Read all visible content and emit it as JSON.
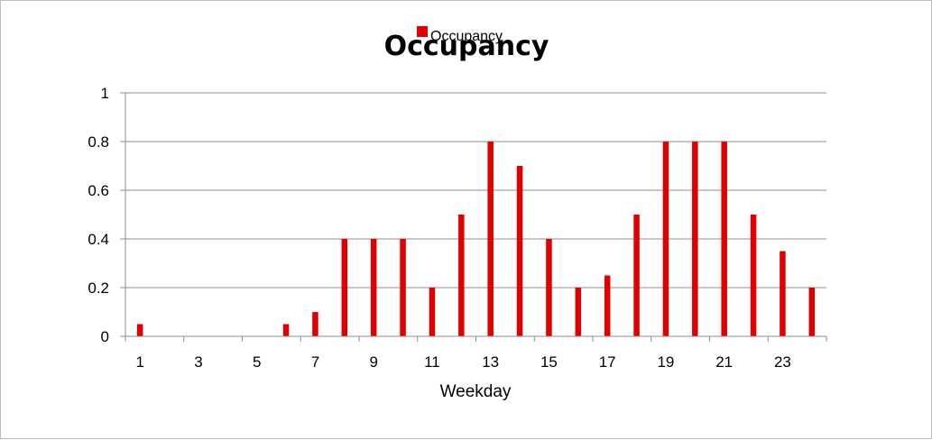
{
  "chart_data": {
    "type": "bar",
    "title": "Occupancy",
    "xlabel": "Weekday",
    "ylabel": "",
    "categories": [
      "1",
      "2",
      "3",
      "4",
      "5",
      "6",
      "7",
      "8",
      "9",
      "10",
      "11",
      "12",
      "13",
      "14",
      "15",
      "16",
      "17",
      "18",
      "19",
      "20",
      "21",
      "22",
      "23",
      "24"
    ],
    "x_tick_labels": [
      "1",
      "3",
      "5",
      "7",
      "9",
      "11",
      "13",
      "15",
      "17",
      "19",
      "21",
      "23"
    ],
    "y_tick_labels": [
      "0",
      "0.2",
      "0.4",
      "0.6",
      "0.8",
      "1"
    ],
    "ylim": [
      0,
      1
    ],
    "grid": true,
    "legend_position": "top-center",
    "series": [
      {
        "name": "Occupancy",
        "color": "#e00000",
        "values": [
          0.05,
          0,
          0,
          0,
          0,
          0.05,
          0.1,
          0.4,
          0.4,
          0.4,
          0.2,
          0.5,
          0.8,
          0.7,
          0.4,
          0.2,
          0.25,
          0.5,
          0.8,
          0.8,
          0.8,
          0.5,
          0.35,
          0.2
        ]
      }
    ]
  }
}
